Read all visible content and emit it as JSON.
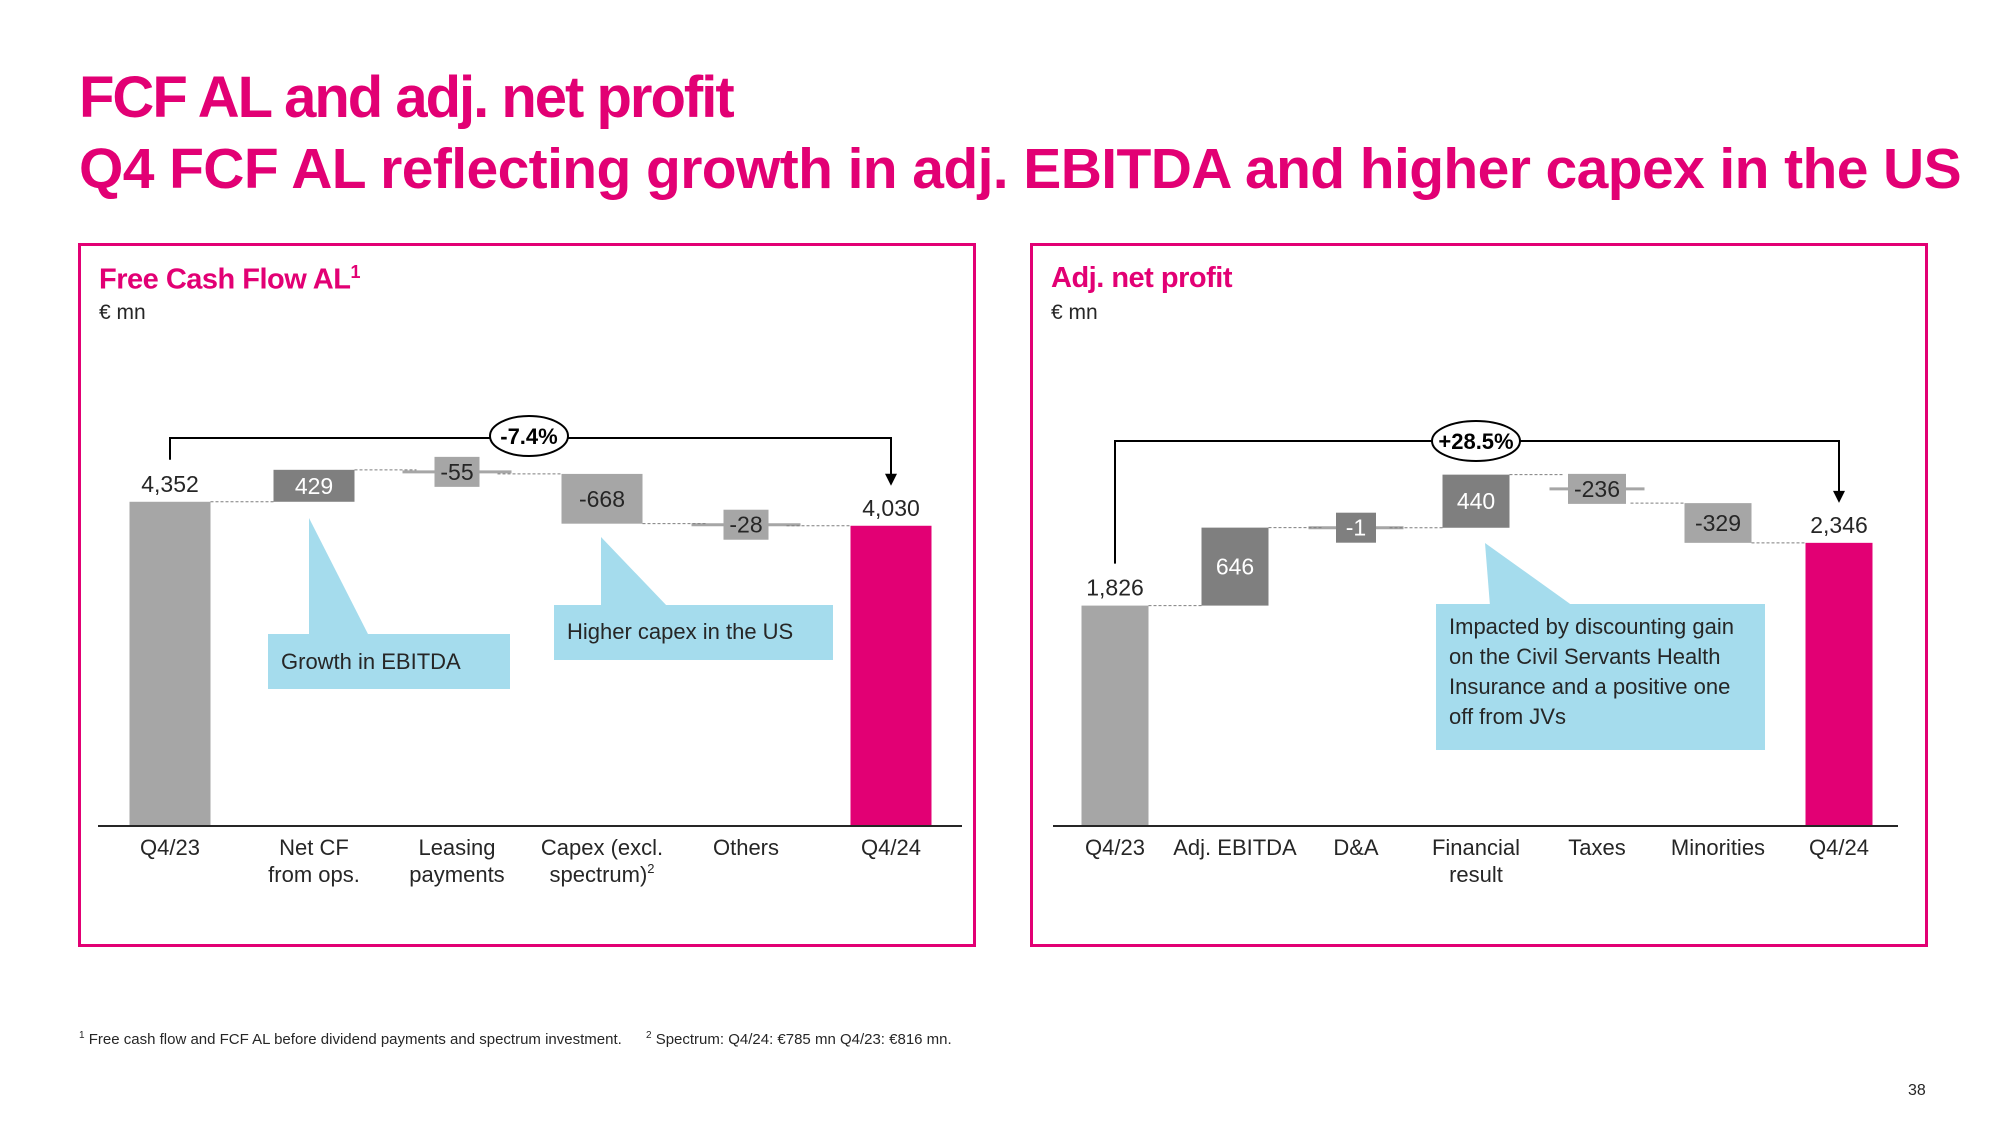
{
  "header": {
    "title": "FCF AL and adj. net profit",
    "subtitle": "Q4 FCF AL reflecting growth in adj. EBITDA and higher capex in the US"
  },
  "colors": {
    "brand": "#e20074",
    "total_start": "#a6a6a6",
    "total_end": "#e20074",
    "delta_dark": "#7f7f7f",
    "delta_light": "#a6a6a6",
    "callout": "#a5dced"
  },
  "panels": [
    {
      "title": "Free Cash Flow AL",
      "title_sup": "1",
      "unit": "€ mn"
    },
    {
      "title": "Adj. net profit",
      "title_sup": "",
      "unit": "€ mn"
    }
  ],
  "chart_data": [
    {
      "type": "waterfall",
      "title": "Free Cash Flow AL",
      "unit": "€ mn",
      "change_label": "-7.4%",
      "categories": [
        [
          "Q4/23"
        ],
        [
          "Net CF",
          "from ops."
        ],
        [
          "Leasing",
          "payments"
        ],
        [
          "Capex (excl.",
          "spectrum)"
        ],
        [
          "Others"
        ],
        [
          "Q4/24"
        ]
      ],
      "category_sups": [
        "",
        "",
        "",
        "2",
        "",
        ""
      ],
      "kinds": [
        "total",
        "delta",
        "delta",
        "delta",
        "delta",
        "total"
      ],
      "values": [
        4352,
        429,
        -55,
        -668,
        -28,
        4030
      ],
      "value_labels": [
        "4,352",
        "429",
        "-55",
        "-668",
        "-28",
        "4,030"
      ],
      "bar_colors": [
        "#a6a6a6",
        "#7f7f7f",
        "#a6a6a6",
        "#a6a6a6",
        "#a6a6a6",
        "#e20074"
      ],
      "callouts": [
        "Growth in EBITDA",
        "Higher capex in the US"
      ]
    },
    {
      "type": "waterfall",
      "title": "Adj. net profit",
      "unit": "€ mn",
      "change_label": "+28.5%",
      "categories": [
        [
          "Q4/23"
        ],
        [
          "Adj. EBITDA"
        ],
        [
          "D&A"
        ],
        [
          "Financial",
          "result"
        ],
        [
          "Taxes"
        ],
        [
          "Minorities"
        ],
        [
          "Q4/24"
        ]
      ],
      "category_sups": [
        "",
        "",
        "",
        "",
        "",
        "",
        ""
      ],
      "kinds": [
        "total",
        "delta",
        "delta",
        "delta",
        "delta",
        "delta",
        "total"
      ],
      "values": [
        1826,
        646,
        -1,
        440,
        -236,
        -329,
        2346
      ],
      "value_labels": [
        "1,826",
        "646",
        "-1",
        "440",
        "-236",
        "-329",
        "2,346"
      ],
      "bar_colors": [
        "#a6a6a6",
        "#7f7f7f",
        "#7f7f7f",
        "#7f7f7f",
        "#a6a6a6",
        "#a6a6a6",
        "#e20074"
      ],
      "callouts": [
        "Impacted by discounting gain on the Civil Servants Health Insurance and a positive one off from JVs"
      ]
    }
  ],
  "footnotes": [
    {
      "ref": "1",
      "text": "Free cash flow and FCF AL before dividend payments and spectrum investment."
    },
    {
      "ref": "2",
      "text": "Spectrum: Q4/24: €785 mn Q4/23: €816 mn."
    }
  ],
  "page_number": "38"
}
